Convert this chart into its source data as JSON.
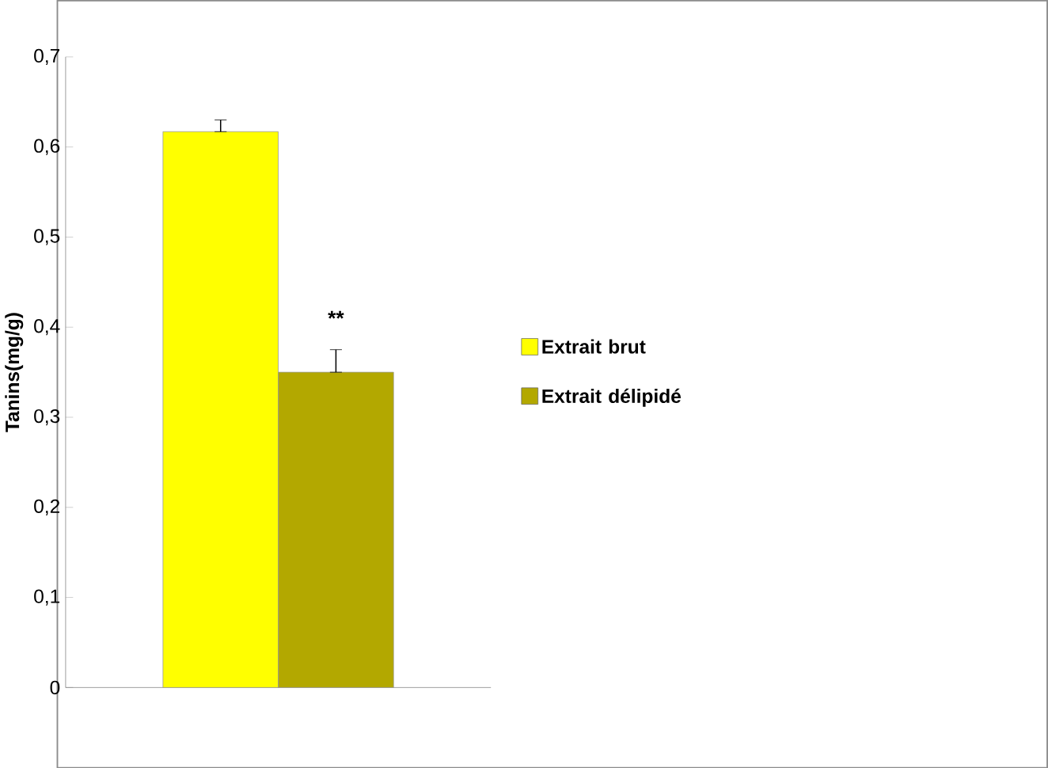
{
  "chart_data": {
    "type": "bar",
    "ylabel": "Tanins(mg/g)",
    "categories": [
      null
    ],
    "series": [
      {
        "name": "Extrait brut",
        "color": "#ffff00",
        "values": [
          0.617
        ],
        "errors": [
          [
            0.617,
            0.63
          ]
        ]
      },
      {
        "name": "Extrait délipidé",
        "color": "#b3a800",
        "values": [
          0.35
        ],
        "errors": [
          [
            0.35,
            0.375
          ]
        ]
      }
    ],
    "ylim": [
      0,
      0.7
    ],
    "yticks": [
      {
        "value": 0,
        "label": "0"
      },
      {
        "value": 0.1,
        "label": "0,1"
      },
      {
        "value": 0.2,
        "label": "0,2"
      },
      {
        "value": 0.3,
        "label": "0,3"
      },
      {
        "value": 0.4,
        "label": "0,4"
      },
      {
        "value": 0.5,
        "label": "0,5"
      },
      {
        "value": 0.6,
        "label": "0,6"
      },
      {
        "value": 0.7,
        "label": "0,7"
      }
    ],
    "annotations": [
      {
        "text": "**",
        "y": 0.41
      }
    ],
    "legend": "right",
    "grid": false
  }
}
